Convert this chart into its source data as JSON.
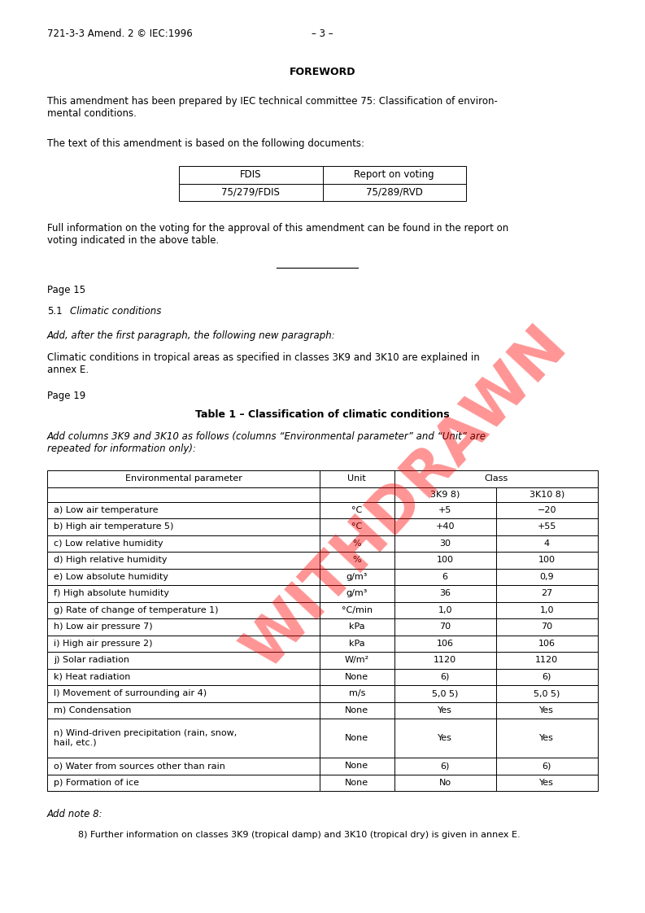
{
  "header_left": "721-3-3 Amend. 2 © IEC:1996",
  "header_center": "– 3 –",
  "foreword_title": "FOREWORD",
  "para1": "This amendment has been prepared by IEC technical committee 75: Classification of environ-\nmental conditions.",
  "para2": "The text of this amendment is based on the following documents:",
  "small_table_headers": [
    "FDIS",
    "Report on voting"
  ],
  "small_table_data": [
    [
      "75/279/FDIS",
      "75/289/RVD"
    ]
  ],
  "para3": "Full information on the voting for the approval of this amendment can be found in the report on\nvoting indicated in the above table.",
  "page15": "Page 15",
  "italic1": "Add, after the first paragraph, the following new paragraph:",
  "para4": "Climatic conditions in tropical areas as specified in classes 3K9 and 3K10 are explained in\nannex E.",
  "page19": "Page 19",
  "table_title": "Table 1 – Classification of climatic conditions",
  "italic2": "Add columns 3K9 and 3K10 as follows (columns “Environmental parameter” and “Unit” are\nrepeated for information only):",
  "table_rows": [
    [
      "a) Low air temperature",
      "°C",
      "+5",
      "−20"
    ],
    [
      "b) High air temperature 5)",
      "°C",
      "+40",
      "+55"
    ],
    [
      "c) Low relative humidity",
      "%",
      "30",
      "4"
    ],
    [
      "d) High relative humidity",
      "%",
      "100",
      "100"
    ],
    [
      "e) Low absolute humidity",
      "g/m³",
      "6",
      "0,9"
    ],
    [
      "f) High absolute humidity",
      "g/m³",
      "36",
      "27"
    ],
    [
      "g) Rate of change of temperature 1)",
      "°C/min",
      "1,0",
      "1,0"
    ],
    [
      "h) Low air pressure 7)",
      "kPa",
      "70",
      "70"
    ],
    [
      "i) High air pressure 2)",
      "kPa",
      "106",
      "106"
    ],
    [
      "j) Solar radiation",
      "W/m²",
      "1120",
      "1120"
    ],
    [
      "k) Heat radiation",
      "None",
      "6)",
      "6)"
    ],
    [
      "l) Movement of surrounding air 4)",
      "m/s",
      "5,0 5)",
      "5,0 5)"
    ],
    [
      "m) Condensation",
      "None",
      "Yes",
      "Yes"
    ],
    [
      "n) Wind-driven precipitation (rain, snow,\nhail, etc.)",
      "None",
      "Yes",
      "Yes"
    ],
    [
      "o) Water from sources other than rain",
      "None",
      "6)",
      "6)"
    ],
    [
      "p) Formation of ice",
      "None",
      "No",
      "Yes"
    ]
  ],
  "add_note": "Add note 8:",
  "note8": "8) Further information on classes 3K9 (tropical damp) and 3K10 (tropical dry) is given in annex E.",
  "bg_color": "#ffffff",
  "font_size": 8.5,
  "page_width": 7.93,
  "page_height": 11.22
}
